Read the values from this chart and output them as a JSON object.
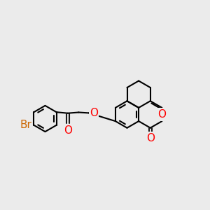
{
  "bg_color": "#ebebeb",
  "bond_color": "#1a1a1a",
  "oxygen_color": "#ff0000",
  "bromine_color": "#cc6600",
  "lw": 1.5,
  "font_size": 10,
  "xlim": [
    0,
    10
  ],
  "ylim": [
    2.5,
    8.5
  ]
}
